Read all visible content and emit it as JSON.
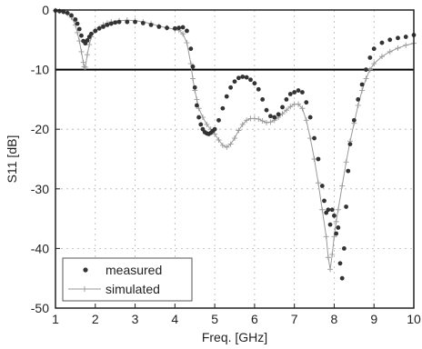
{
  "chart_data": {
    "type": "line",
    "title": "",
    "xlabel": "Freq. [GHz]",
    "ylabel": "S11 [dB]",
    "xlim": [
      1,
      10
    ],
    "ylim": [
      -50,
      0
    ],
    "x_ticks": [
      1,
      2,
      3,
      4,
      5,
      6,
      7,
      8,
      9,
      10
    ],
    "y_ticks": [
      0,
      -10,
      -20,
      -30,
      -40,
      -50
    ],
    "grid": true,
    "legend_position": "bottom-left",
    "reference_line": {
      "y": -10,
      "color": "#000000"
    },
    "series": [
      {
        "name": "measured",
        "style": "dots",
        "color": "#333333",
        "x": [
          1.0,
          1.1,
          1.2,
          1.3,
          1.4,
          1.5,
          1.55,
          1.6,
          1.65,
          1.7,
          1.75,
          1.8,
          1.85,
          1.9,
          2.0,
          2.1,
          2.2,
          2.3,
          2.4,
          2.5,
          2.6,
          2.8,
          3.0,
          3.2,
          3.4,
          3.6,
          3.8,
          4.0,
          4.1,
          4.2,
          4.3,
          4.4,
          4.45,
          4.5,
          4.55,
          4.6,
          4.65,
          4.7,
          4.75,
          4.8,
          4.85,
          4.9,
          4.95,
          5.0,
          5.1,
          5.2,
          5.3,
          5.4,
          5.5,
          5.6,
          5.7,
          5.8,
          5.9,
          6.0,
          6.1,
          6.2,
          6.3,
          6.4,
          6.5,
          6.6,
          6.7,
          6.8,
          6.9,
          7.0,
          7.1,
          7.2,
          7.3,
          7.4,
          7.5,
          7.6,
          7.7,
          7.75,
          7.8,
          7.85,
          7.9,
          7.95,
          8.0,
          8.05,
          8.1,
          8.15,
          8.2,
          8.25,
          8.3,
          8.35,
          8.4,
          8.5,
          8.6,
          8.7,
          8.8,
          8.9,
          9.0,
          9.2,
          9.4,
          9.6,
          9.8,
          10.0
        ],
        "y": [
          -0.1,
          -0.2,
          -0.3,
          -0.5,
          -0.9,
          -1.6,
          -2.3,
          -3.2,
          -4.3,
          -5.2,
          -5.6,
          -5.1,
          -4.5,
          -4.0,
          -3.5,
          -3.1,
          -2.8,
          -2.5,
          -2.3,
          -2.1,
          -2.0,
          -2.0,
          -2.0,
          -2.2,
          -2.5,
          -2.8,
          -3.0,
          -3.1,
          -3.0,
          -2.9,
          -3.5,
          -6.5,
          -9.5,
          -13.0,
          -16.0,
          -18.0,
          -19.2,
          -20.0,
          -20.5,
          -20.7,
          -20.8,
          -20.6,
          -20.3,
          -20.0,
          -18.5,
          -16.5,
          -14.5,
          -13.0,
          -12.0,
          -11.4,
          -11.2,
          -11.3,
          -11.7,
          -12.3,
          -13.3,
          -15.0,
          -16.8,
          -17.8,
          -18.0,
          -17.5,
          -16.3,
          -15.0,
          -14.1,
          -13.8,
          -13.5,
          -13.8,
          -15.5,
          -18.0,
          -21.5,
          -25.0,
          -29.5,
          -32.0,
          -34.0,
          -33.5,
          -36.0,
          -33.5,
          -34.5,
          -37.5,
          -36.5,
          -42.5,
          -45.0,
          -40.0,
          -33.0,
          -27.0,
          -22.5,
          -18.5,
          -15.0,
          -12.5,
          -10.0,
          -8.0,
          -6.5,
          -5.5,
          -5.0,
          -4.7,
          -4.5,
          -4.2
        ]
      },
      {
        "name": "simulated",
        "style": "line-plus",
        "color": "#999999",
        "x": [
          1.0,
          1.1,
          1.2,
          1.3,
          1.4,
          1.5,
          1.55,
          1.6,
          1.65,
          1.7,
          1.72,
          1.75,
          1.8,
          1.85,
          1.9,
          2.0,
          2.1,
          2.2,
          2.3,
          2.4,
          2.6,
          2.8,
          3.0,
          3.2,
          3.4,
          3.6,
          3.8,
          4.0,
          4.1,
          4.2,
          4.3,
          4.4,
          4.45,
          4.5,
          4.55,
          4.6,
          4.7,
          4.8,
          4.9,
          5.0,
          5.1,
          5.2,
          5.3,
          5.4,
          5.5,
          5.6,
          5.7,
          5.8,
          5.9,
          6.0,
          6.1,
          6.2,
          6.3,
          6.4,
          6.5,
          6.6,
          6.7,
          6.8,
          6.9,
          7.0,
          7.1,
          7.2,
          7.3,
          7.4,
          7.5,
          7.6,
          7.7,
          7.8,
          7.85,
          7.9,
          7.95,
          8.0,
          8.05,
          8.1,
          8.2,
          8.3,
          8.4,
          8.5,
          8.6,
          8.7,
          8.8,
          8.9,
          9.0,
          9.2,
          9.4,
          9.6,
          9.8,
          10.0
        ],
        "y": [
          -0.1,
          -0.2,
          -0.3,
          -0.6,
          -1.2,
          -2.5,
          -3.8,
          -5.2,
          -7.0,
          -8.8,
          -9.5,
          -9.6,
          -7.5,
          -5.8,
          -4.5,
          -3.5,
          -3.0,
          -2.5,
          -2.2,
          -2.0,
          -1.8,
          -1.7,
          -1.8,
          -2.0,
          -2.3,
          -2.7,
          -3.0,
          -3.2,
          -3.4,
          -4.0,
          -5.5,
          -9.0,
          -11.5,
          -13.5,
          -15.0,
          -16.5,
          -18.0,
          -19.2,
          -20.0,
          -20.8,
          -21.8,
          -22.7,
          -23.0,
          -22.5,
          -21.5,
          -20.2,
          -19.2,
          -18.5,
          -18.2,
          -18.2,
          -18.3,
          -18.6,
          -18.9,
          -18.8,
          -18.5,
          -18.0,
          -17.4,
          -16.8,
          -16.2,
          -15.8,
          -15.8,
          -16.5,
          -18.5,
          -21.5,
          -25.0,
          -29.0,
          -33.5,
          -38.0,
          -41.5,
          -43.5,
          -41.0,
          -38.0,
          -35.5,
          -33.5,
          -29.5,
          -25.5,
          -22.0,
          -19.0,
          -16.0,
          -13.5,
          -11.5,
          -10.0,
          -9.0,
          -7.8,
          -7.0,
          -6.4,
          -5.9,
          -5.6
        ]
      }
    ]
  }
}
